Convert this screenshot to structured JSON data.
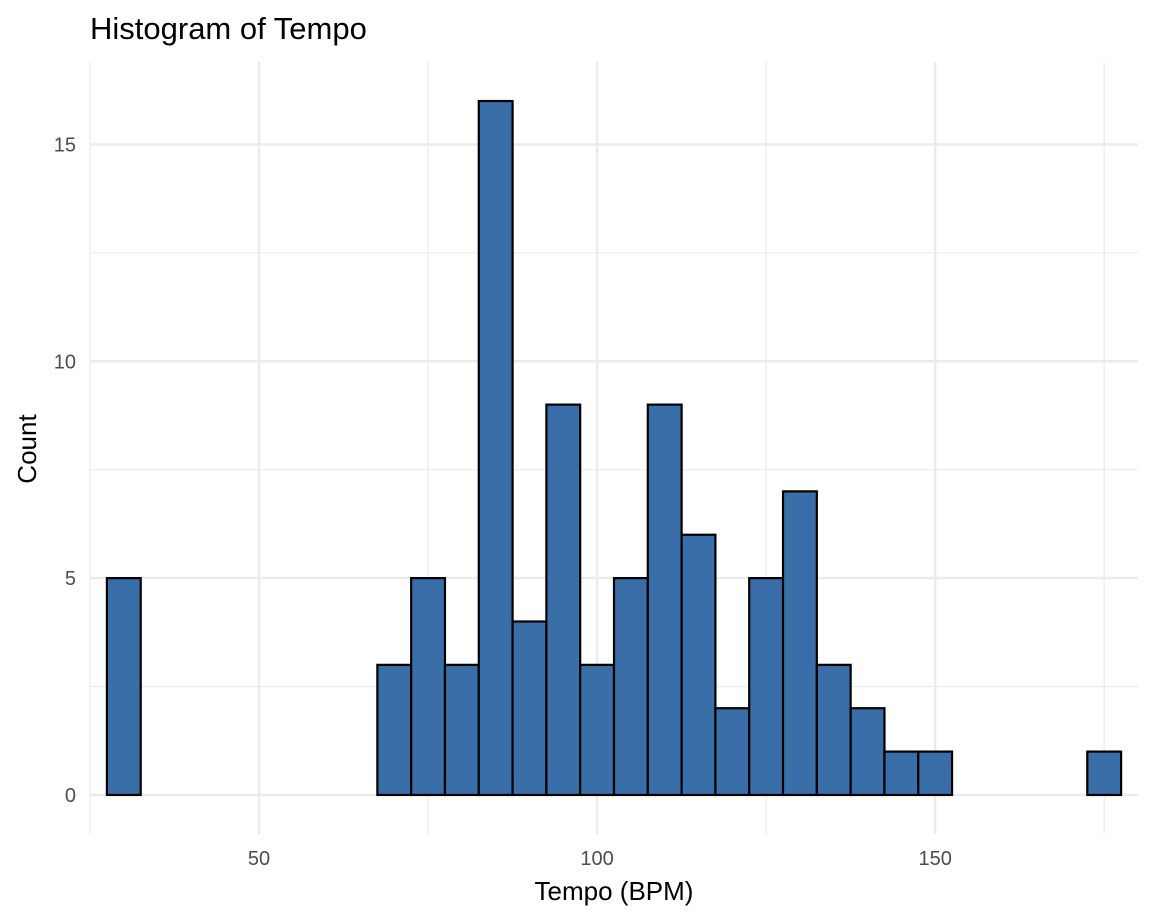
{
  "chart_data": {
    "type": "bar",
    "title": "Histogram of Tempo",
    "xlabel": "Tempo (BPM)",
    "ylabel": "Count",
    "bin_width": 5,
    "x": [
      30,
      35,
      40,
      45,
      50,
      55,
      60,
      65,
      70,
      75,
      80,
      85,
      90,
      95,
      100,
      105,
      110,
      115,
      120,
      125,
      130,
      135,
      140,
      145,
      150,
      155,
      160,
      165,
      170,
      175
    ],
    "values": [
      5,
      0,
      0,
      0,
      0,
      0,
      0,
      0,
      3,
      5,
      3,
      16,
      4,
      9,
      3,
      5,
      9,
      6,
      2,
      5,
      7,
      3,
      2,
      1,
      1,
      0,
      0,
      0,
      0,
      1
    ],
    "xlim": [
      25,
      180
    ],
    "ylim": [
      -0.9,
      16.9
    ],
    "x_ticks": [
      50,
      100,
      150
    ],
    "x_tick_labels": [
      "50",
      "100",
      "150"
    ],
    "y_ticks": [
      0,
      5,
      10,
      15
    ],
    "y_tick_labels": [
      "0",
      "5",
      "10",
      "15"
    ],
    "grid": true,
    "legend": "none",
    "colors": {
      "bar_fill": "#3A6EA8",
      "bar_outline": "#000000",
      "grid": "#EBEBEB"
    }
  }
}
